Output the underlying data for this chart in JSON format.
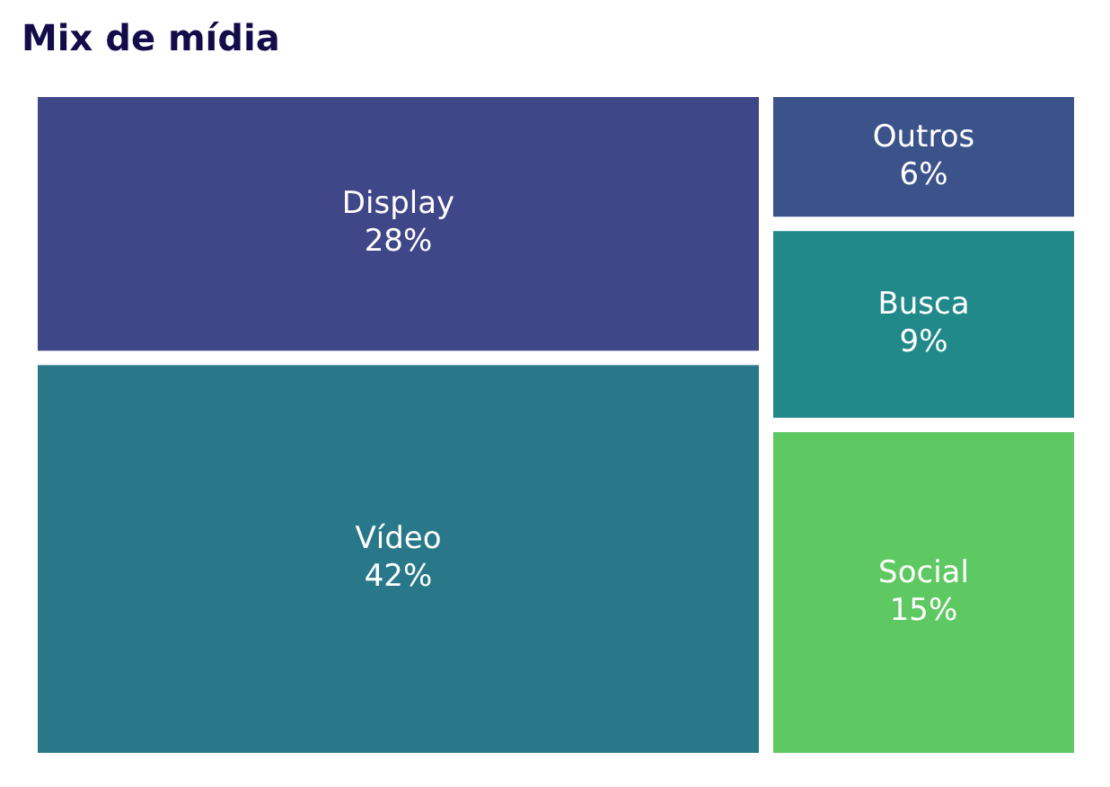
{
  "chart_data": {
    "type": "other",
    "title": "Mix de mídia",
    "categories": [
      "Display",
      "Vídeo",
      "Outros",
      "Busca",
      "Social"
    ],
    "values": [
      28,
      42,
      6,
      9,
      15
    ],
    "value_labels": [
      "28%",
      "42%",
      "6%",
      "9%",
      "15%"
    ],
    "colors": [
      "#3f4788",
      "#29788a",
      "#3b528b",
      "#21898a",
      "#5ec962"
    ]
  }
}
